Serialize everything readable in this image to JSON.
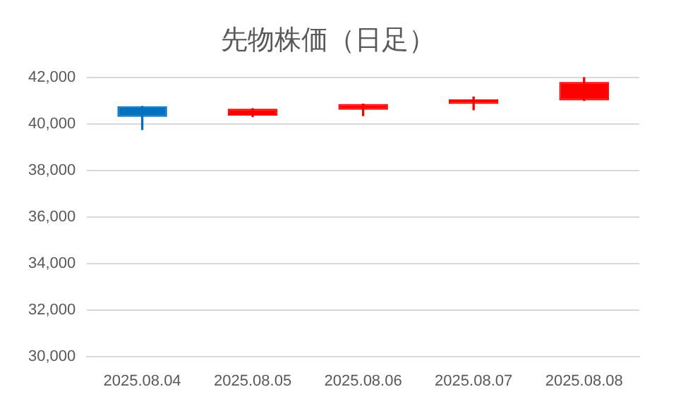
{
  "chart_data": {
    "type": "candlestick",
    "title": "先物株価（日足）",
    "categories": [
      "2025.08.04",
      "2025.08.05",
      "2025.08.06",
      "2025.08.07",
      "2025.08.08"
    ],
    "ohlc": [
      [
        40750,
        40750,
        39750,
        40300
      ],
      [
        40350,
        40650,
        40300,
        40650
      ],
      [
        40600,
        40850,
        40350,
        40850
      ],
      [
        40850,
        41150,
        40600,
        41050
      ],
      [
        41000,
        42000,
        41000,
        41800
      ]
    ],
    "colors": [
      "#0070c0",
      "#ff0000",
      "#ff0000",
      "#ff0000",
      "#ff0000"
    ],
    "ylim": [
      30000,
      42000
    ],
    "yticks": [
      {
        "value": 30000,
        "label": "30,000"
      },
      {
        "value": 32000,
        "label": "32,000"
      },
      {
        "value": 34000,
        "label": "34,000"
      },
      {
        "value": 36000,
        "label": "36,000"
      },
      {
        "value": 38000,
        "label": "38,000"
      },
      {
        "value": 40000,
        "label": "40,000"
      },
      {
        "value": 42000,
        "label": "42,000"
      }
    ],
    "grid": "y",
    "legend": false
  }
}
